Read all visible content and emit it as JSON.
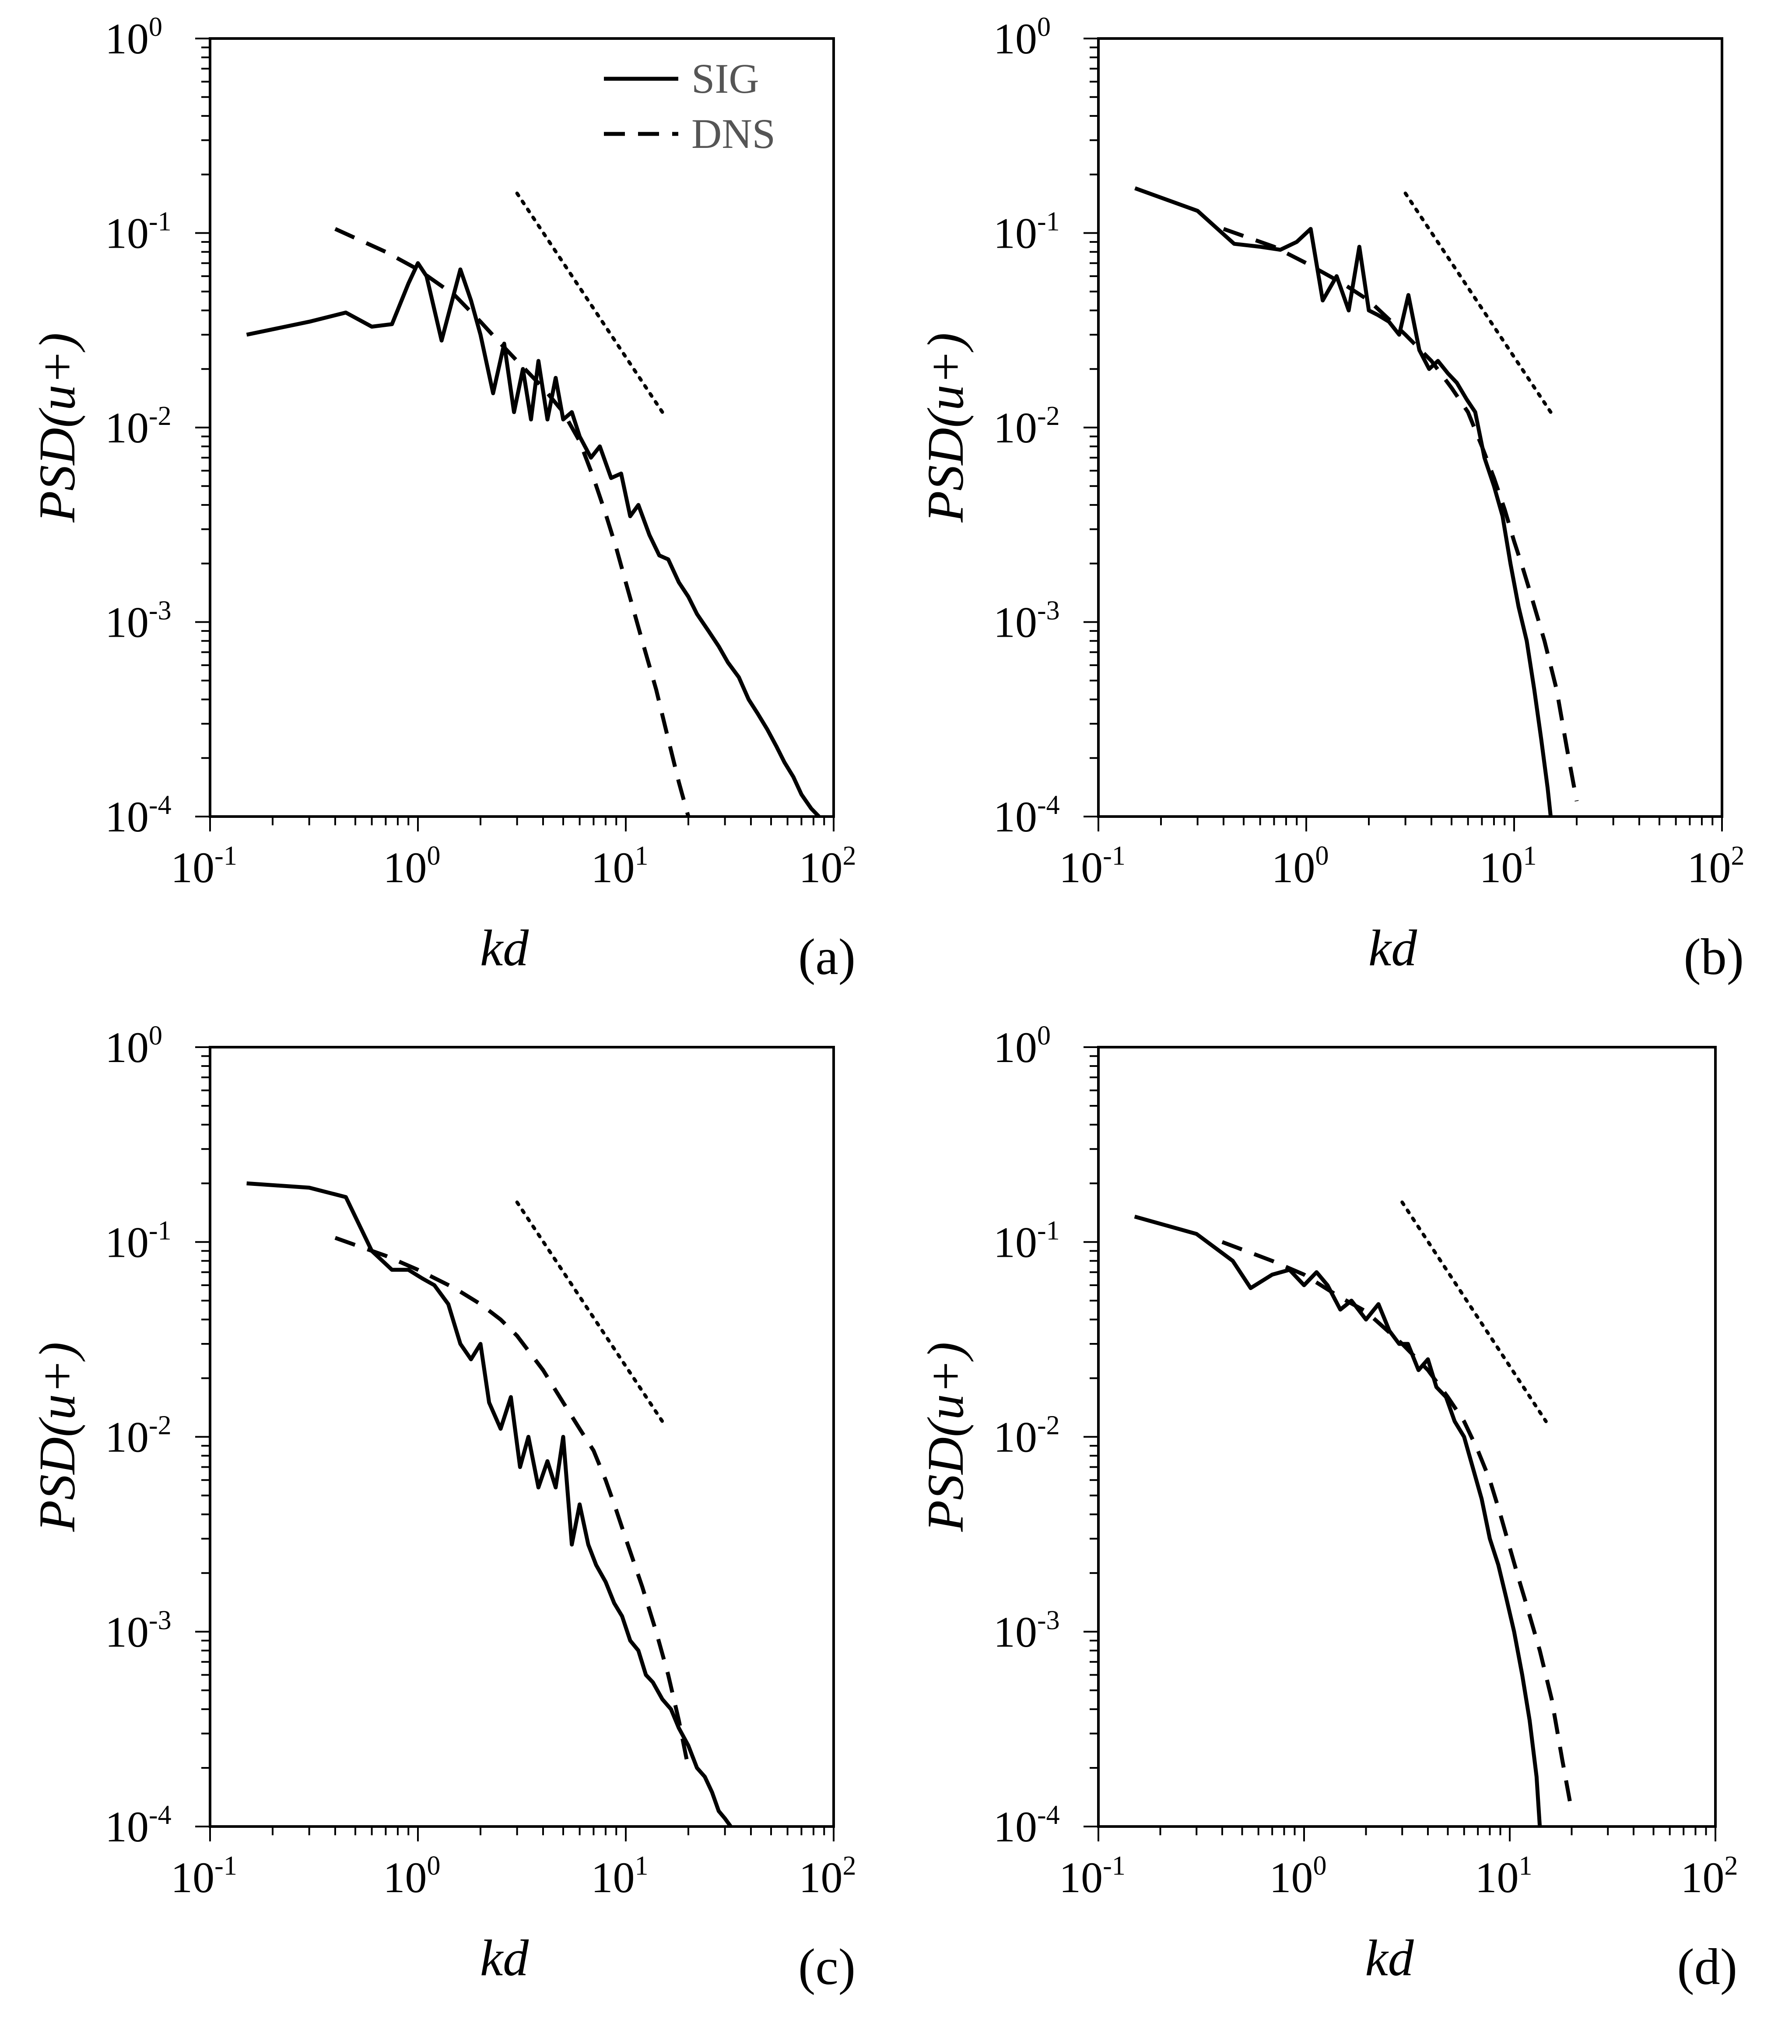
{
  "chart_data": [
    {
      "panel": "a",
      "type": "line",
      "panel_label": "(a)",
      "xlabel": "kd",
      "ylabel": "PSD(u+)",
      "xscale": "log",
      "yscale": "log",
      "xlim": [
        0.1,
        100
      ],
      "ylim": [
        0.0001,
        1
      ],
      "x_ticks": [
        "10",
        "10",
        "10",
        "10"
      ],
      "x_tick_exponents": [
        "-1",
        "0",
        "1",
        "2"
      ],
      "y_ticks": [
        "10",
        "10",
        "10",
        "10",
        "10"
      ],
      "y_tick_exponents": [
        "0",
        "-1",
        "-2",
        "-3",
        "-4"
      ],
      "legend": {
        "position": "top-right",
        "entries": [
          "SIG",
          "DNS"
        ]
      },
      "series": [
        {
          "name": "SIG",
          "style": "solid",
          "x": [
            0.15,
            0.3,
            0.45,
            0.6,
            0.75,
            0.9,
            1.0,
            1.1,
            1.3,
            1.6,
            1.8,
            2.0,
            2.3,
            2.6,
            2.9,
            3.2,
            3.5,
            3.8,
            4.2,
            4.6,
            5.0,
            5.5,
            6.0,
            6.8,
            7.5,
            8.5,
            9.5,
            10.5,
            11.5,
            13,
            14.5,
            16,
            18,
            20,
            22,
            25,
            28,
            31,
            35,
            39,
            43,
            48,
            53,
            58,
            64,
            70,
            78,
            85
          ],
          "y": [
            0.03,
            0.035,
            0.039,
            0.033,
            0.034,
            0.055,
            0.07,
            0.06,
            0.028,
            0.065,
            0.045,
            0.03,
            0.015,
            0.027,
            0.012,
            0.02,
            0.011,
            0.022,
            0.011,
            0.018,
            0.011,
            0.012,
            0.009,
            0.007,
            0.008,
            0.0055,
            0.0058,
            0.0035,
            0.004,
            0.0028,
            0.0022,
            0.0021,
            0.0016,
            0.00135,
            0.0011,
            0.0009,
            0.00075,
            0.00062,
            0.00052,
            0.0004,
            0.00034,
            0.00028,
            0.00023,
            0.00019,
            0.00016,
            0.00013,
            0.00011,
            0.0001
          ]
        },
        {
          "name": "DNS",
          "style": "dashed",
          "x": [
            0.4,
            0.7,
            1.0,
            1.5,
            2.0,
            2.5,
            3.0,
            4.0,
            5.0,
            6.0,
            7.0,
            8.0,
            9.0,
            10.0,
            12.0,
            14.0,
            16.0,
            18.0,
            20.0
          ],
          "y": [
            0.105,
            0.08,
            0.065,
            0.048,
            0.035,
            0.027,
            0.022,
            0.016,
            0.012,
            0.0085,
            0.0055,
            0.0036,
            0.0024,
            0.0016,
            0.0008,
            0.00045,
            0.00025,
            0.00015,
            0.0001
          ]
        },
        {
          "name": "reference slope",
          "style": "dotted",
          "x": [
            3.0,
            15.0
          ],
          "y": [
            0.16,
            0.012
          ]
        }
      ]
    },
    {
      "panel": "b",
      "type": "line",
      "panel_label": "(b)",
      "xlabel": "kd",
      "ylabel": "PSD(u+)",
      "xscale": "log",
      "yscale": "log",
      "xlim": [
        0.1,
        100
      ],
      "ylim": [
        0.0001,
        1
      ],
      "x_ticks": [
        "10",
        "10",
        "10",
        "10"
      ],
      "x_tick_exponents": [
        "-1",
        "0",
        "1",
        "2"
      ],
      "y_ticks": [
        "10",
        "10",
        "10",
        "10",
        "10"
      ],
      "y_tick_exponents": [
        "0",
        "-1",
        "-2",
        "-3",
        "-4"
      ],
      "series": [
        {
          "name": "SIG",
          "style": "solid",
          "x": [
            0.15,
            0.3,
            0.45,
            0.6,
            0.75,
            0.9,
            1.05,
            1.2,
            1.4,
            1.6,
            1.8,
            2.0,
            2.2,
            2.5,
            2.8,
            3.1,
            3.5,
            3.9,
            4.3,
            4.8,
            5.3,
            5.9,
            6.5,
            7.2,
            8.0,
            8.8,
            9.6,
            10.5,
            11.5,
            12.5,
            13.5,
            14.5,
            15.0
          ],
          "y": [
            0.17,
            0.13,
            0.088,
            0.085,
            0.082,
            0.09,
            0.105,
            0.045,
            0.06,
            0.04,
            0.085,
            0.04,
            0.038,
            0.035,
            0.03,
            0.048,
            0.025,
            0.02,
            0.022,
            0.019,
            0.017,
            0.014,
            0.012,
            0.007,
            0.005,
            0.0035,
            0.002,
            0.0012,
            0.0008,
            0.00045,
            0.00025,
            0.00014,
            0.0001
          ]
        },
        {
          "name": "DNS",
          "style": "dashed",
          "x": [
            0.4,
            0.7,
            1.0,
            1.5,
            2.0,
            3.0,
            4.0,
            5.0,
            6.0,
            7.0,
            8.0,
            9.0,
            10.0,
            11.0,
            12.0,
            14.0,
            16.0,
            18.0,
            20.0
          ],
          "y": [
            0.105,
            0.085,
            0.07,
            0.055,
            0.045,
            0.03,
            0.022,
            0.016,
            0.012,
            0.008,
            0.0055,
            0.0038,
            0.0026,
            0.0019,
            0.0014,
            0.0008,
            0.00045,
            0.00022,
            0.00012
          ]
        },
        {
          "name": "reference slope",
          "style": "dotted",
          "x": [
            3.0,
            15.0
          ],
          "y": [
            0.16,
            0.012
          ]
        }
      ]
    },
    {
      "panel": "c",
      "type": "line",
      "panel_label": "(c)",
      "xlabel": "kd",
      "ylabel": "PSD(u+)",
      "xscale": "log",
      "yscale": "log",
      "xlim": [
        0.1,
        100
      ],
      "ylim": [
        0.0001,
        1
      ],
      "x_ticks": [
        "10",
        "10",
        "10",
        "10"
      ],
      "x_tick_exponents": [
        "-1",
        "0",
        "1",
        "2"
      ],
      "y_ticks": [
        "10",
        "10",
        "10",
        "10",
        "10"
      ],
      "y_tick_exponents": [
        "0",
        "-1",
        "-2",
        "-3",
        "-4"
      ],
      "series": [
        {
          "name": "SIG",
          "style": "solid",
          "x": [
            0.15,
            0.3,
            0.45,
            0.6,
            0.75,
            0.9,
            1.05,
            1.2,
            1.4,
            1.6,
            1.8,
            2.0,
            2.2,
            2.5,
            2.8,
            3.1,
            3.4,
            3.8,
            4.2,
            4.6,
            5.0,
            5.5,
            6.0,
            6.6,
            7.2,
            8.0,
            8.8,
            9.6,
            10.5,
            11.5,
            12.5,
            13.5,
            15,
            16.5,
            18,
            20,
            22,
            24,
            26,
            28,
            30,
            32
          ],
          "y": [
            0.2,
            0.19,
            0.17,
            0.09,
            0.072,
            0.072,
            0.065,
            0.06,
            0.048,
            0.03,
            0.025,
            0.03,
            0.015,
            0.011,
            0.016,
            0.007,
            0.01,
            0.0055,
            0.0075,
            0.0055,
            0.01,
            0.0028,
            0.0045,
            0.0028,
            0.0022,
            0.0018,
            0.0014,
            0.0012,
            0.0009,
            0.0008,
            0.0006,
            0.00055,
            0.00045,
            0.0004,
            0.00032,
            0.00026,
            0.0002,
            0.00018,
            0.00015,
            0.00012,
            0.00011,
            0.0001
          ]
        },
        {
          "name": "DNS",
          "style": "dashed",
          "x": [
            0.4,
            0.7,
            1.0,
            1.5,
            2.0,
            2.5,
            3.0,
            4.0,
            5.0,
            6.0,
            7.0,
            8.0,
            9.0,
            10.0,
            12.0,
            14.0,
            16.0,
            18.0,
            20.0
          ],
          "y": [
            0.105,
            0.085,
            0.072,
            0.058,
            0.048,
            0.04,
            0.033,
            0.022,
            0.015,
            0.011,
            0.0085,
            0.006,
            0.0042,
            0.003,
            0.0017,
            0.001,
            0.0006,
            0.00035,
            0.0002
          ]
        },
        {
          "name": "reference slope",
          "style": "dotted",
          "x": [
            3.0,
            15.0
          ],
          "y": [
            0.16,
            0.012
          ]
        }
      ]
    },
    {
      "panel": "d",
      "type": "line",
      "panel_label": "(d)",
      "xlabel": "kd",
      "ylabel": "PSD(u+)",
      "xscale": "log",
      "yscale": "log",
      "xlim": [
        0.1,
        100
      ],
      "ylim": [
        0.0001,
        1
      ],
      "x_ticks": [
        "10",
        "10",
        "10",
        "10"
      ],
      "x_tick_exponents": [
        "-1",
        "0",
        "1",
        "2"
      ],
      "y_ticks": [
        "10",
        "10",
        "10",
        "10",
        "10"
      ],
      "y_tick_exponents": [
        "0",
        "-1",
        "-2",
        "-3",
        "-4"
      ],
      "series": [
        {
          "name": "SIG",
          "style": "solid",
          "x": [
            0.15,
            0.3,
            0.45,
            0.55,
            0.7,
            0.85,
            1.0,
            1.15,
            1.3,
            1.5,
            1.7,
            2.0,
            2.3,
            2.6,
            2.9,
            3.2,
            3.6,
            4.0,
            4.4,
            4.9,
            5.4,
            6.0,
            6.6,
            7.3,
            8.0,
            8.8,
            9.6,
            10.5,
            11.5,
            12.5,
            13.5,
            14.0
          ],
          "y": [
            0.135,
            0.11,
            0.08,
            0.058,
            0.068,
            0.072,
            0.06,
            0.07,
            0.06,
            0.045,
            0.05,
            0.04,
            0.048,
            0.035,
            0.03,
            0.03,
            0.022,
            0.025,
            0.018,
            0.016,
            0.012,
            0.01,
            0.007,
            0.0048,
            0.003,
            0.0022,
            0.0015,
            0.001,
            0.0006,
            0.00035,
            0.00018,
            0.0001
          ]
        },
        {
          "name": "DNS",
          "style": "dashed",
          "x": [
            0.4,
            0.7,
            1.0,
            1.5,
            2.0,
            3.0,
            4.0,
            5.0,
            6.0,
            7.0,
            8.0,
            9.0,
            10.0,
            11.0,
            12.0,
            14.0,
            16.0,
            18.0,
            20.0
          ],
          "y": [
            0.1,
            0.08,
            0.068,
            0.052,
            0.044,
            0.03,
            0.022,
            0.016,
            0.012,
            0.0085,
            0.006,
            0.004,
            0.0027,
            0.0019,
            0.0014,
            0.0008,
            0.00045,
            0.00022,
            0.00012
          ]
        },
        {
          "name": "reference slope",
          "style": "dotted",
          "x": [
            3.0,
            15.0
          ],
          "y": [
            0.16,
            0.012
          ]
        }
      ]
    }
  ]
}
